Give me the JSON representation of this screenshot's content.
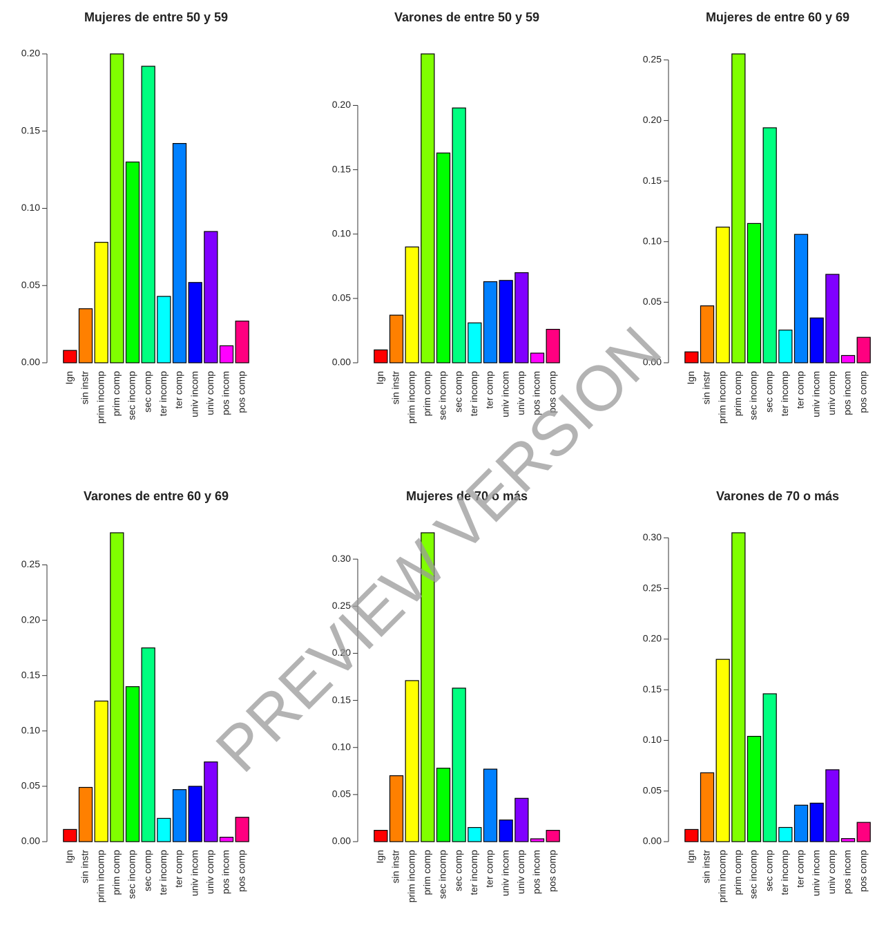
{
  "watermark": "PREVIEW VERSION",
  "chart_data": [
    {
      "type": "bar",
      "title": "Mujeres de entre 50 y 59",
      "categories": [
        "Ign",
        "sin instr",
        "prim incomp",
        "prim comp",
        "sec incomp",
        "sec comp",
        "ter incomp",
        "ter comp",
        "univ incom",
        "univ comp",
        "pos incom",
        "pos comp"
      ],
      "values": [
        0.008,
        0.035,
        0.078,
        0.2,
        0.13,
        0.192,
        0.043,
        0.142,
        0.052,
        0.085,
        0.011,
        0.027
      ],
      "colors": [
        "#FF0000",
        "#FF8000",
        "#FFFF00",
        "#80FF00",
        "#00FF00",
        "#00FF80",
        "#00FFFF",
        "#0080FF",
        "#0000FF",
        "#8000FF",
        "#FF00FF",
        "#FF0080"
      ],
      "ylim": [
        0,
        0.2
      ],
      "yticks": [
        {
          "value": 0,
          "label": "0.00"
        },
        {
          "value": 0.05,
          "label": "0.05"
        },
        {
          "value": 0.1,
          "label": "0.10"
        },
        {
          "value": 0.15,
          "label": "0.15"
        },
        {
          "value": 0.2,
          "label": "0.20"
        }
      ]
    },
    {
      "type": "bar",
      "title": "Varones de entre 50 y 59",
      "categories": [
        "Ign",
        "sin instr",
        "prim incomp",
        "prim comp",
        "sec incomp",
        "sec comp",
        "ter incomp",
        "ter comp",
        "univ incom",
        "univ comp",
        "pos incom",
        "pos comp"
      ],
      "values": [
        0.01,
        0.037,
        0.09,
        0.24,
        0.163,
        0.198,
        0.031,
        0.063,
        0.064,
        0.07,
        0.0075,
        0.026
      ],
      "colors": [
        "#FF0000",
        "#FF8000",
        "#FFFF00",
        "#80FF00",
        "#00FF00",
        "#00FF80",
        "#00FFFF",
        "#0080FF",
        "#0000FF",
        "#8000FF",
        "#FF00FF",
        "#FF0080"
      ],
      "ylim": [
        0,
        0.24
      ],
      "yticks": [
        {
          "value": 0,
          "label": "0.00"
        },
        {
          "value": 0.05,
          "label": "0.05"
        },
        {
          "value": 0.1,
          "label": "0.10"
        },
        {
          "value": 0.15,
          "label": "0.15"
        },
        {
          "value": 0.2,
          "label": "0.20"
        }
      ]
    },
    {
      "type": "bar",
      "title": "Mujeres de entre 60 y 69",
      "categories": [
        "Ign",
        "sin instr",
        "prim incomp",
        "prim comp",
        "sec incomp",
        "sec comp",
        "ter incomp",
        "ter comp",
        "univ incom",
        "univ comp",
        "pos incom",
        "pos comp"
      ],
      "values": [
        0.009,
        0.047,
        0.112,
        0.255,
        0.115,
        0.194,
        0.027,
        0.106,
        0.037,
        0.073,
        0.006,
        0.021
      ],
      "colors": [
        "#FF0000",
        "#FF8000",
        "#FFFF00",
        "#80FF00",
        "#00FF00",
        "#00FF80",
        "#00FFFF",
        "#0080FF",
        "#0000FF",
        "#8000FF",
        "#FF00FF",
        "#FF0080"
      ],
      "ylim": [
        0,
        0.255
      ],
      "yticks": [
        {
          "value": 0,
          "label": "0.00"
        },
        {
          "value": 0.05,
          "label": "0.05"
        },
        {
          "value": 0.1,
          "label": "0.10"
        },
        {
          "value": 0.15,
          "label": "0.15"
        },
        {
          "value": 0.2,
          "label": "0.20"
        },
        {
          "value": 0.25,
          "label": "0.25"
        }
      ]
    },
    {
      "type": "bar",
      "title": "Varones de entre 60 y 69",
      "categories": [
        "Ign",
        "sin instr",
        "prim incomp",
        "prim comp",
        "sec incomp",
        "sec comp",
        "ter incomp",
        "ter comp",
        "univ incom",
        "univ comp",
        "pos incom",
        "pos comp"
      ],
      "values": [
        0.011,
        0.049,
        0.127,
        0.279,
        0.14,
        0.175,
        0.021,
        0.047,
        0.05,
        0.072,
        0.004,
        0.022
      ],
      "colors": [
        "#FF0000",
        "#FF8000",
        "#FFFF00",
        "#80FF00",
        "#00FF00",
        "#00FF80",
        "#00FFFF",
        "#0080FF",
        "#0000FF",
        "#8000FF",
        "#FF00FF",
        "#FF0080"
      ],
      "ylim": [
        0,
        0.279
      ],
      "yticks": [
        {
          "value": 0,
          "label": "0.00"
        },
        {
          "value": 0.05,
          "label": "0.05"
        },
        {
          "value": 0.1,
          "label": "0.10"
        },
        {
          "value": 0.15,
          "label": "0.15"
        },
        {
          "value": 0.2,
          "label": "0.20"
        },
        {
          "value": 0.25,
          "label": "0.25"
        }
      ]
    },
    {
      "type": "bar",
      "title": "Mujeres de 70 o más",
      "categories": [
        "Ign",
        "sin instr",
        "prim incomp",
        "prim comp",
        "sec incomp",
        "sec comp",
        "ter incomp",
        "ter comp",
        "univ incom",
        "univ comp",
        "pos incom",
        "pos comp"
      ],
      "values": [
        0.012,
        0.07,
        0.171,
        0.328,
        0.078,
        0.163,
        0.015,
        0.077,
        0.023,
        0.046,
        0.003,
        0.012
      ],
      "colors": [
        "#FF0000",
        "#FF8000",
        "#FFFF00",
        "#80FF00",
        "#00FF00",
        "#00FF80",
        "#00FFFF",
        "#0080FF",
        "#0000FF",
        "#8000FF",
        "#FF00FF",
        "#FF0080"
      ],
      "ylim": [
        0,
        0.328
      ],
      "yticks": [
        {
          "value": 0,
          "label": "0.00"
        },
        {
          "value": 0.05,
          "label": "0.05"
        },
        {
          "value": 0.1,
          "label": "0.10"
        },
        {
          "value": 0.15,
          "label": "0.15"
        },
        {
          "value": 0.2,
          "label": "0.20"
        },
        {
          "value": 0.25,
          "label": "0.25"
        },
        {
          "value": 0.3,
          "label": "0.30"
        }
      ]
    },
    {
      "type": "bar",
      "title": "Varones de 70 o más",
      "categories": [
        "Ign",
        "sin instr",
        "prim incomp",
        "prim comp",
        "sec incomp",
        "sec comp",
        "ter incomp",
        "ter comp",
        "univ incom",
        "univ comp",
        "pos incom",
        "pos comp"
      ],
      "values": [
        0.012,
        0.068,
        0.18,
        0.305,
        0.104,
        0.146,
        0.014,
        0.036,
        0.038,
        0.071,
        0.003,
        0.019
      ],
      "colors": [
        "#FF0000",
        "#FF8000",
        "#FFFF00",
        "#80FF00",
        "#00FF00",
        "#00FF80",
        "#00FFFF",
        "#0080FF",
        "#0000FF",
        "#8000FF",
        "#FF00FF",
        "#FF0080"
      ],
      "ylim": [
        0,
        0.305
      ],
      "yticks": [
        {
          "value": 0,
          "label": "0.00"
        },
        {
          "value": 0.05,
          "label": "0.05"
        },
        {
          "value": 0.1,
          "label": "0.10"
        },
        {
          "value": 0.15,
          "label": "0.15"
        },
        {
          "value": 0.2,
          "label": "0.20"
        },
        {
          "value": 0.25,
          "label": "0.25"
        },
        {
          "value": 0.3,
          "label": "0.30"
        }
      ]
    }
  ]
}
